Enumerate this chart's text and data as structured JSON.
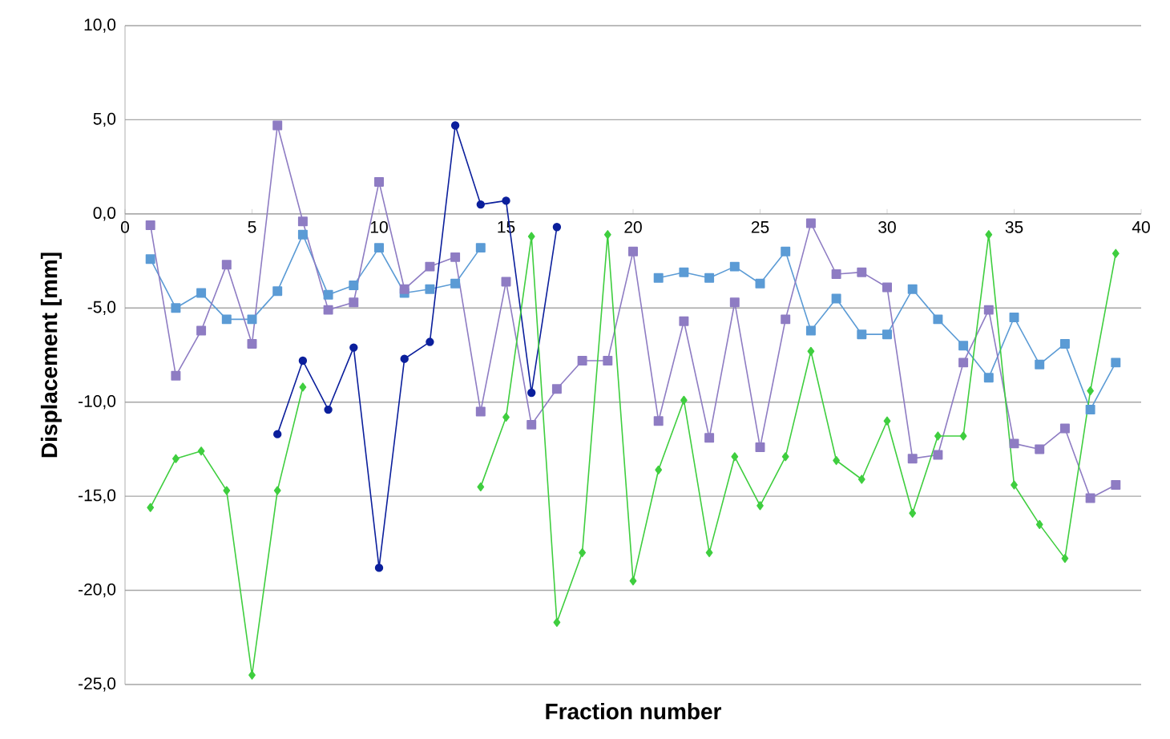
{
  "chart_data": {
    "type": "line",
    "xlabel": "Fraction number",
    "ylabel": "Displacement [mm]",
    "x": [
      1,
      2,
      3,
      4,
      5,
      6,
      7,
      8,
      9,
      10,
      11,
      12,
      13,
      14,
      15,
      16,
      17,
      18,
      19,
      20,
      21,
      22,
      23,
      24,
      25,
      26,
      27,
      28,
      29,
      30,
      31,
      32,
      33,
      34,
      35,
      36,
      37,
      38,
      39
    ],
    "series": [
      {
        "color": "#5b9bd5",
        "marker": "square",
        "values": [
          -2.4,
          -5.0,
          -4.2,
          -5.6,
          -5.6,
          -4.1,
          -1.1,
          -4.3,
          -3.8,
          -1.8,
          -4.2,
          -4.0,
          -3.7,
          -1.8,
          null,
          null,
          null,
          null,
          null,
          null,
          -3.4,
          -3.1,
          -3.4,
          -2.8,
          -3.7,
          -2.0,
          -6.2,
          -4.5,
          -6.4,
          -6.4,
          -4.0,
          -5.6,
          -7.0,
          -8.7,
          -5.5,
          -8.0,
          -6.9,
          -10.4,
          -7.9
        ]
      },
      {
        "color": "#8e7cc3",
        "marker": "square",
        "values": [
          -0.6,
          -8.6,
          -6.2,
          -2.7,
          -6.9,
          4.7,
          -0.4,
          -5.1,
          -4.7,
          1.7,
          -4.0,
          -2.8,
          -2.3,
          -10.5,
          -3.6,
          -11.2,
          -9.3,
          -7.8,
          -7.8,
          -2.0,
          -11.0,
          -5.7,
          -11.9,
          -4.7,
          -12.4,
          -5.6,
          -0.5,
          -3.2,
          -3.1,
          -3.9,
          -13.0,
          -12.8,
          -7.9,
          -5.1,
          -12.2,
          -12.5,
          -11.4,
          -15.1,
          -14.4
        ]
      },
      {
        "color": "#0b1f9c",
        "marker": "circle",
        "values": [
          null,
          null,
          null,
          null,
          null,
          -11.7,
          -7.8,
          -10.4,
          -7.1,
          -18.8,
          -7.7,
          -6.8,
          4.7,
          0.5,
          0.7,
          -9.5,
          -0.7,
          null,
          null,
          null,
          null,
          null,
          null,
          null,
          null,
          null,
          null,
          null,
          null,
          null,
          null,
          null,
          null,
          null,
          null,
          null,
          null,
          null,
          null
        ]
      },
      {
        "color": "#3fce3f",
        "marker": "diamond",
        "values": [
          -15.6,
          -13.0,
          -12.6,
          -14.7,
          -24.5,
          -14.7,
          -9.2,
          null,
          null,
          null,
          null,
          null,
          null,
          -14.5,
          -10.8,
          -1.2,
          -21.7,
          -18.0,
          -1.1,
          -19.5,
          -13.6,
          -9.9,
          -18.0,
          -12.9,
          -15.5,
          -12.9,
          -7.3,
          -13.1,
          -14.1,
          -11.0,
          -15.9,
          -11.8,
          -11.8,
          -1.1,
          -14.4,
          -16.5,
          -18.3,
          -9.4,
          -2.1
        ]
      }
    ],
    "xlim": [
      0,
      40
    ],
    "xticks": [
      0,
      5,
      10,
      15,
      20,
      25,
      30,
      35,
      40
    ],
    "ylim": [
      -25,
      10
    ],
    "yticks": [
      {
        "value": -25,
        "label": "-25,0"
      },
      {
        "value": -20,
        "label": "-20,0"
      },
      {
        "value": -15,
        "label": "-15,0"
      },
      {
        "value": -10,
        "label": "-10,0"
      },
      {
        "value": -5,
        "label": "-5,0"
      },
      {
        "value": 0,
        "label": "0,0"
      },
      {
        "value": 5,
        "label": "5,0"
      },
      {
        "value": 10,
        "label": "10,0"
      }
    ],
    "grid": "y"
  }
}
